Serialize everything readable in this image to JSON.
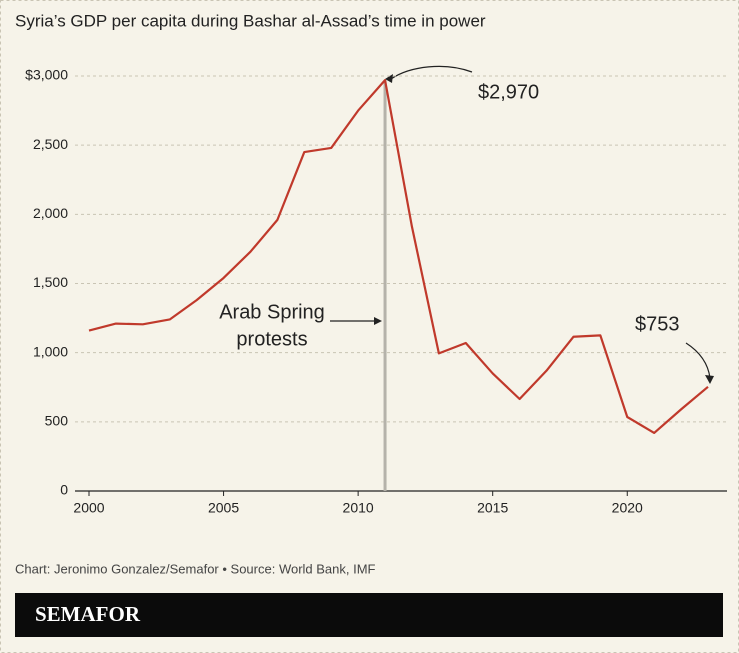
{
  "chart_data": {
    "type": "line",
    "title": "Syria’s GDP per capita during Bashar al-Assad’s time in power",
    "x": [
      2000,
      2001,
      2002,
      2003,
      2004,
      2005,
      2006,
      2007,
      2008,
      2009,
      2010,
      2011,
      2012,
      2013,
      2014,
      2015,
      2016,
      2017,
      2018,
      2019,
      2020,
      2021,
      2022,
      2023
    ],
    "series": [
      {
        "name": "GDP per capita",
        "color": "#c0392b",
        "values": [
          1160,
          1210,
          1205,
          1240,
          1380,
          1540,
          1730,
          1960,
          2450,
          2480,
          2750,
          2970,
          1910,
          995,
          1070,
          850,
          665,
          870,
          1115,
          1125,
          535,
          420,
          590,
          753
        ],
        "value_labels": [
          null,
          null,
          null,
          null,
          null,
          null,
          null,
          null,
          null,
          null,
          null,
          "$2,970",
          null,
          null,
          null,
          null,
          null,
          null,
          null,
          null,
          null,
          null,
          null,
          "$753"
        ]
      }
    ],
    "xlim": [
      2000,
      2023
    ],
    "xticks": [
      2000,
      2005,
      2010,
      2015,
      2020
    ],
    "ylim": [
      0,
      3000
    ],
    "yticks": [
      0,
      500,
      {
        "value": 1000,
        "label": "1,000"
      },
      {
        "value": 1500,
        "label": "1,500"
      },
      {
        "value": 2000,
        "label": "2,000"
      },
      {
        "value": 2500,
        "label": "2,500"
      },
      {
        "value": 3000,
        "label": "$3,000"
      }
    ],
    "grid": true,
    "annotation": [
      "Arab Spring",
      "protests"
    ],
    "source": "Chart: Jeronimo Gonzalez/Semafor • Source: World Bank, IMF",
    "brand": "SEMAFOR"
  }
}
